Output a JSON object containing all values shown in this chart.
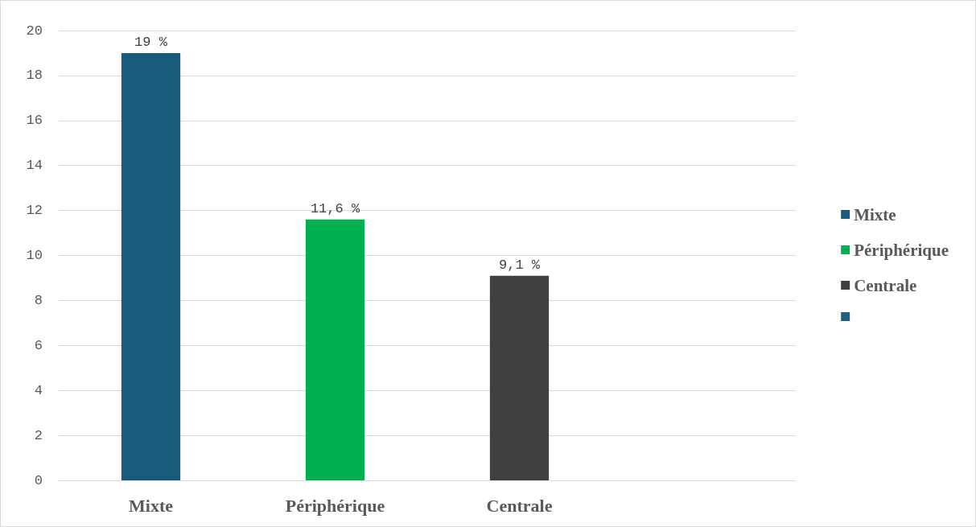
{
  "chart_data": {
    "type": "bar",
    "categories": [
      "Mixte",
      "Périphérique",
      "Centrale",
      null
    ],
    "series": [
      {
        "name": "Mixte",
        "color": "#175a7c",
        "values": [
          19,
          null,
          null,
          null
        ],
        "value_labels": [
          "19 %",
          null,
          null,
          null
        ]
      },
      {
        "name": "Périphérique",
        "color": "#00b050",
        "values": [
          null,
          11.6,
          null,
          null
        ],
        "value_labels": [
          null,
          "11,6 %",
          null,
          null
        ]
      },
      {
        "name": "Centrale",
        "color": "#404040",
        "values": [
          null,
          null,
          9.1,
          null
        ],
        "value_labels": [
          null,
          null,
          "9,1 %",
          null
        ]
      },
      {
        "color": "#1f5f86",
        "values": [
          null,
          null,
          null,
          null
        ]
      }
    ],
    "ylim": [
      0,
      20
    ],
    "yticks": [
      0,
      2,
      4,
      6,
      8,
      10,
      12,
      14,
      16,
      18,
      20
    ],
    "grid": "y",
    "legend": "right"
  }
}
